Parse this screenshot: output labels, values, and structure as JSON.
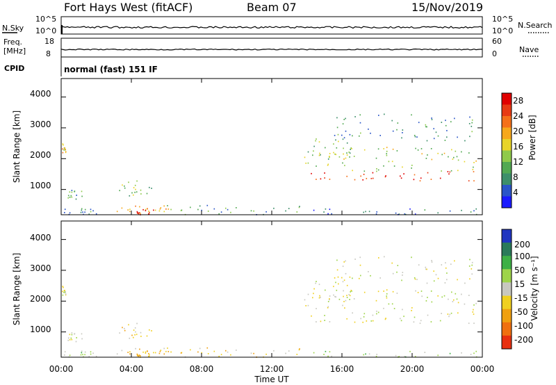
{
  "header": {
    "station": "Fort Hays West (fitACF)",
    "beam": "Beam 07",
    "date": "15/Nov/2019"
  },
  "noise_panel": {
    "left_label": "N.Sky",
    "right_label": "N.Search",
    "left_ticks": [
      "10^5",
      "10^0"
    ],
    "right_ticks": [
      "10^5",
      "10^0"
    ]
  },
  "freq_panel": {
    "left_label_line1": "Freq.",
    "left_label_line2": "[MHz]",
    "right_label": "Nave",
    "left_ticks": [
      "18",
      "8"
    ],
    "right_ticks": [
      "60",
      "0"
    ]
  },
  "cpid_panel": {
    "label": "CPID",
    "value": "normal (fast) 151 IF"
  },
  "power_panel": {
    "ylabel": "Slant Range [km]",
    "yticks": [
      "4000",
      "3000",
      "2000",
      "1000"
    ],
    "colorbar_label": "Power [dB]",
    "colorbar_ticks": [
      "28",
      "24",
      "20",
      "16",
      "12",
      "8",
      "4"
    ],
    "colors": [
      "#1a1aff",
      "#2a55c8",
      "#3d8f6a",
      "#52a952",
      "#8fca4a",
      "#e8d428",
      "#f7a81c",
      "#f5701a",
      "#e83a14",
      "#e00000"
    ]
  },
  "velocity_panel": {
    "ylabel": "Slant Range [km]",
    "yticks": [
      "4000",
      "3000",
      "2000",
      "1000"
    ],
    "colorbar_label": "Velocity [m s⁻¹]",
    "colorbar_ticks": [
      "200",
      "100",
      "50",
      "15",
      "-15",
      "-50",
      "-100",
      "-200"
    ],
    "colors": [
      "#2035c0",
      "#2a7a5a",
      "#3eb046",
      "#9ed44a",
      "#c8c8c0",
      "#f0d020",
      "#f0a010",
      "#f07010",
      "#e83010"
    ]
  },
  "xaxis": {
    "label": "Time UT",
    "ticks": [
      "00:00",
      "04:00",
      "08:00",
      "12:00",
      "16:00",
      "20:00",
      "00:00"
    ]
  },
  "chart_data": {
    "type": "heatmap",
    "title": "Fort Hays West (fitACF)  Beam 07  15/Nov/2019",
    "xlabel": "Time UT",
    "ylabel": "Slant Range [km]",
    "xlim": [
      0,
      24
    ],
    "ylim": [
      180,
      4600
    ],
    "grid": false,
    "series": [
      {
        "name": "Power [dB]",
        "zlim": [
          0,
          30
        ]
      },
      {
        "name": "Velocity [m s⁻¹]",
        "zlim": [
          -250,
          250
        ]
      }
    ],
    "scatter_regions": [
      {
        "t": [
          0.0,
          0.35
        ],
        "range": [
          2200,
          2500
        ],
        "power_db": 18,
        "velocity": 0
      },
      {
        "t": [
          0.35,
          1.2
        ],
        "range": [
          700,
          1000
        ],
        "power_db": 10,
        "velocity": 0
      },
      {
        "t": [
          0.0,
          2.5
        ],
        "range": [
          200,
          400
        ],
        "power_db": 8,
        "velocity": 20
      },
      {
        "t": [
          3.2,
          5.2
        ],
        "range": [
          800,
          1300
        ],
        "power_db": 12,
        "velocity": -20
      },
      {
        "t": [
          3.0,
          6.2
        ],
        "range": [
          200,
          500
        ],
        "power_db": 20,
        "velocity": -40
      },
      {
        "t": [
          4.3,
          5.4
        ],
        "range": [
          200,
          400
        ],
        "power_db": 28,
        "velocity": -50
      },
      {
        "t": [
          6.0,
          13.8
        ],
        "range": [
          200,
          500
        ],
        "power_db": 10,
        "velocity": -30
      },
      {
        "t": [
          13.8,
          23.7
        ],
        "range": [
          1300,
          1600
        ],
        "power_db": 26,
        "velocity": 0
      },
      {
        "t": [
          13.8,
          23.7
        ],
        "range": [
          1600,
          2400
        ],
        "power_db": 14,
        "velocity": 0
      },
      {
        "t": [
          14.0,
          16.5
        ],
        "range": [
          2000,
          2700
        ],
        "power_db": 12,
        "velocity": 0
      },
      {
        "t": [
          15.5,
          23.5
        ],
        "range": [
          2600,
          3500
        ],
        "power_db": 8,
        "velocity": 0
      },
      {
        "t": [
          13.8,
          23.7
        ],
        "range": [
          200,
          400
        ],
        "power_db": 6,
        "velocity": 30
      }
    ]
  }
}
